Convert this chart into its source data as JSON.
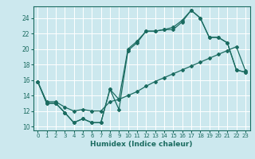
{
  "bg_color": "#cce8ee",
  "grid_color": "#ffffff",
  "line_color": "#1a6b60",
  "xlabel": "Humidex (Indice chaleur)",
  "xlim": [
    -0.5,
    23.5
  ],
  "ylim": [
    9.5,
    25.5
  ],
  "xticks": [
    0,
    1,
    2,
    3,
    4,
    5,
    6,
    7,
    8,
    9,
    10,
    11,
    12,
    13,
    14,
    15,
    16,
    17,
    18,
    19,
    20,
    21,
    22,
    23
  ],
  "yticks": [
    10,
    12,
    14,
    16,
    18,
    20,
    22,
    24
  ],
  "curve1_y": [
    15.8,
    13.0,
    13.0,
    11.8,
    10.5,
    11.0,
    10.5,
    10.5,
    14.8,
    12.2,
    19.8,
    20.8,
    22.3,
    22.3,
    22.5,
    22.5,
    23.5,
    25.0,
    24.0,
    21.5,
    21.5,
    20.8,
    17.3,
    17.0
  ],
  "curve2_y": [
    15.8,
    13.0,
    13.0,
    11.8,
    10.5,
    11.0,
    10.5,
    10.5,
    14.8,
    13.5,
    20.0,
    21.0,
    22.3,
    22.3,
    22.5,
    22.8,
    23.7,
    25.0,
    24.0,
    21.5,
    21.5,
    20.8,
    17.3,
    17.0
  ],
  "curve3_y": [
    15.8,
    13.2,
    13.2,
    12.5,
    12.0,
    12.2,
    12.0,
    12.0,
    13.2,
    13.5,
    14.0,
    14.5,
    15.2,
    15.8,
    16.3,
    16.8,
    17.3,
    17.8,
    18.3,
    18.8,
    19.3,
    19.8,
    20.3,
    17.2
  ]
}
